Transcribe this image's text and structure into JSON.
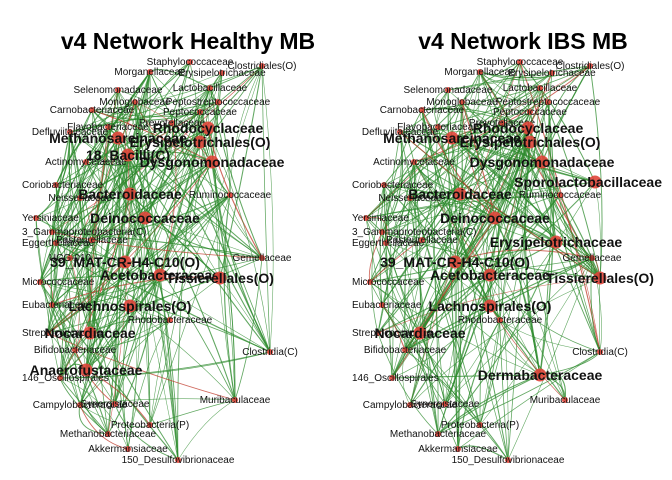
{
  "chart_data": [
    {
      "type": "network",
      "title": "v4 Network Healthy MB",
      "edge_color": "#2e8b2e",
      "node_color": "#e0453a",
      "nodes": [
        {
          "label": "Staphylococcaceae",
          "size": 1
        },
        {
          "label": "Morganellaceae",
          "size": 1
        },
        {
          "label": "Erysipelotrichaceae",
          "size": 1
        },
        {
          "label": "Clostridiales(O)",
          "size": 1
        },
        {
          "label": "Selenomonadaceae",
          "size": 1
        },
        {
          "label": "Lactobacillaceae",
          "size": 1
        },
        {
          "label": "Peptostreptococcaceae",
          "size": 1
        },
        {
          "label": "Monoglobaceae",
          "size": 1
        },
        {
          "label": "Peptococcaceae",
          "size": 1
        },
        {
          "label": "Carnobacteriaceae",
          "size": 1
        },
        {
          "label": "Prevotellaceae",
          "size": 1
        },
        {
          "label": "Flavobacteriaceae",
          "size": 1
        },
        {
          "label": "Defluviitaleaceae",
          "size": 1
        },
        {
          "label": "Rhodocyclaceae",
          "size": 3
        },
        {
          "label": "Methanosarcinaceae",
          "size": 3
        },
        {
          "label": "Erysipelotrichales(O)",
          "size": 3
        },
        {
          "label": "Actinomycetaceae",
          "size": 1
        },
        {
          "label": "Dysgonomonadaceae",
          "size": 3
        },
        {
          "label": "18_Bacilli(C)",
          "size": 2
        },
        {
          "label": "Coriobacteriaceae",
          "size": 1
        },
        {
          "label": "Neisseriaceae",
          "size": 1
        },
        {
          "label": "Bacteroidaceae",
          "size": 3
        },
        {
          "label": "Ruminococcaceae",
          "size": 1
        },
        {
          "label": "Deinococcaceae",
          "size": 3
        },
        {
          "label": "Yersiniaceae",
          "size": 1
        },
        {
          "label": "3_Gammaproteobacteria(C)",
          "size": 1
        },
        {
          "label": "Eggerthellaceae",
          "size": 1
        },
        {
          "label": "Pasteurellaceae",
          "size": 1
        },
        {
          "label": "UCG-010",
          "size": 1
        },
        {
          "label": "39_MAT-CR-H4-C10(O)",
          "size": 3
        },
        {
          "label": "Acetobacteraceae",
          "size": 3
        },
        {
          "label": "Tissierellales(O)",
          "size": 3
        },
        {
          "label": "Micrococcaceae",
          "size": 1
        },
        {
          "label": "Eubacteriaceae",
          "size": 1
        },
        {
          "label": "Lachnospirales(O)",
          "size": 3
        },
        {
          "label": "Streptococcaceae",
          "size": 1
        },
        {
          "label": "Nocardiaceae",
          "size": 3
        },
        {
          "label": "Bifidobacteriaceae",
          "size": 1
        },
        {
          "label": "Anaerofustaceae",
          "size": 3
        },
        {
          "label": "146_Oscillospirales",
          "size": 1
        },
        {
          "label": "Campylobacteraceae",
          "size": 1
        },
        {
          "label": "Synergistaceae",
          "size": 1
        },
        {
          "label": "Muribaculaceae",
          "size": 1
        },
        {
          "label": "Methanobacteriaceae",
          "size": 1
        },
        {
          "label": "Akkermansiaceae",
          "size": 1
        },
        {
          "label": "150_Desulfovibrionaceae",
          "size": 1
        },
        {
          "label": "Gemellaceae",
          "size": 1
        },
        {
          "label": "Proteobacteria(P)",
          "size": 1
        },
        {
          "label": "Rhodobacteraceae",
          "size": 1
        },
        {
          "label": "Clostridia(C)",
          "size": 1
        }
      ]
    },
    {
      "type": "network",
      "title": "v4 Network IBS MB",
      "edge_color": "#2e8b2e",
      "node_color": "#e0453a",
      "nodes": [
        {
          "label": "Staphylococcaceae",
          "size": 1
        },
        {
          "label": "Morganellaceae",
          "size": 1
        },
        {
          "label": "Erysipelotrichaceae",
          "size": 1
        },
        {
          "label": "Clostridiales(O)",
          "size": 1
        },
        {
          "label": "Selenomonadaceae",
          "size": 1
        },
        {
          "label": "Lactobacillaceae",
          "size": 1
        },
        {
          "label": "Peptostreptococcaceae",
          "size": 1
        },
        {
          "label": "Monoglobaceae",
          "size": 1
        },
        {
          "label": "Peptococcaceae",
          "size": 1
        },
        {
          "label": "Carnobacteriaceae",
          "size": 1
        },
        {
          "label": "Prevotellaceae",
          "size": 1
        },
        {
          "label": "Flavobacteriaceae",
          "size": 1
        },
        {
          "label": "Defluviitaleaceae",
          "size": 1
        },
        {
          "label": "Rhodocyclaceae",
          "size": 3
        },
        {
          "label": "Methanosarcinaceae",
          "size": 3
        },
        {
          "label": "Erysipelotrichales(O)",
          "size": 3
        },
        {
          "label": "Actinomycetaceae",
          "size": 1
        },
        {
          "label": "Dysgonomonadaceae",
          "size": 3
        },
        {
          "label": "Sporolactobacillaceae",
          "size": 3
        },
        {
          "label": "Coriobacteriaceae",
          "size": 1
        },
        {
          "label": "Neisseriaceae",
          "size": 1
        },
        {
          "label": "Bacteroidaceae",
          "size": 3
        },
        {
          "label": "Ruminococcaceae",
          "size": 1
        },
        {
          "label": "Deinococcaceae",
          "size": 3
        },
        {
          "label": "Yersiniaceae",
          "size": 1
        },
        {
          "label": "3_Gammaproteobacteria(C)",
          "size": 1
        },
        {
          "label": "Eggerthellaceae",
          "size": 1
        },
        {
          "label": "Pasteurellaceae",
          "size": 1
        },
        {
          "label": "Erysipelotrichaceae",
          "size": 3
        },
        {
          "label": "39_MAT-CR-H4-C10(O)",
          "size": 3
        },
        {
          "label": "Acetobacteraceae",
          "size": 3
        },
        {
          "label": "Tissierellales(O)",
          "size": 3
        },
        {
          "label": "Micrococcaceae",
          "size": 1
        },
        {
          "label": "Eubacteriaceae",
          "size": 1
        },
        {
          "label": "Lachnospirales(O)",
          "size": 3
        },
        {
          "label": "Streptococcaceae",
          "size": 1
        },
        {
          "label": "Nocardiaceae",
          "size": 3
        },
        {
          "label": "Bifidobacteriaceae",
          "size": 1
        },
        {
          "label": "Dermabacteraceae",
          "size": 3
        },
        {
          "label": "146_Oscillospirales",
          "size": 1
        },
        {
          "label": "Campylobacteraceae",
          "size": 1
        },
        {
          "label": "Synergistaceae",
          "size": 1
        },
        {
          "label": "Muribaculaceae",
          "size": 1
        },
        {
          "label": "Methanobacteriaceae",
          "size": 1
        },
        {
          "label": "Akkermansiaceae",
          "size": 1
        },
        {
          "label": "150_Desulfovibrionaceae",
          "size": 1
        },
        {
          "label": "Gemellaceae",
          "size": 1
        },
        {
          "label": "Proteobacteria(P)",
          "size": 1
        },
        {
          "label": "Rhodobacteraceae",
          "size": 1
        },
        {
          "label": "Clostridia(C)",
          "size": 1
        }
      ]
    }
  ]
}
